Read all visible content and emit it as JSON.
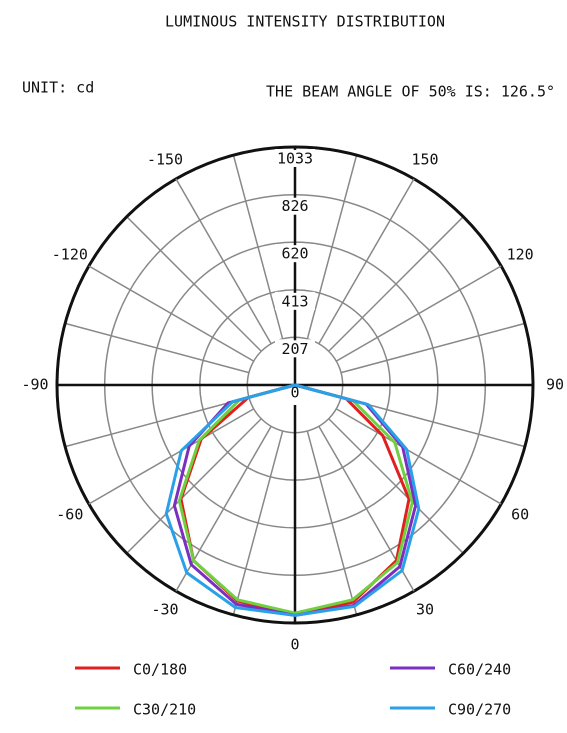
{
  "chart_data": {
    "type": "polar",
    "title": "LUMINOUS INTENSITY DISTRIBUTION",
    "unit_label": "UNIT: cd",
    "subtitle": "THE BEAM ANGLE OF 50% IS: 126.5°",
    "theta": [
      -90,
      -75,
      -60,
      -45,
      -30,
      -15,
      0,
      15,
      30,
      45,
      60,
      75,
      90
    ],
    "series": [
      {
        "name": "C0/180",
        "color": "#e0201e",
        "values": [
          0,
          210,
          470,
          700,
          880,
          970,
          1000,
          975,
          880,
          700,
          440,
          230,
          0
        ]
      },
      {
        "name": "C30/210",
        "color": "#6fd040",
        "values": [
          0,
          250,
          480,
          710,
          880,
          965,
          990,
          965,
          890,
          720,
          500,
          260,
          0
        ]
      },
      {
        "name": "C60/240",
        "color": "#7a2fc0",
        "values": [
          0,
          300,
          530,
          740,
          900,
          985,
          1000,
          990,
          910,
          740,
          540,
          320,
          0
        ]
      },
      {
        "name": "C90/270",
        "color": "#2aa0e8",
        "values": [
          0,
          280,
          570,
          790,
          940,
          1000,
          1000,
          995,
          930,
          760,
          560,
          330,
          0
        ]
      }
    ],
    "rlim": [
      0,
      1033
    ],
    "rticks": [
      0,
      207,
      413,
      620,
      826,
      1033
    ],
    "thetaticks": [
      -150,
      -120,
      -90,
      -60,
      -30,
      0,
      30,
      60,
      90,
      120,
      150
    ]
  }
}
